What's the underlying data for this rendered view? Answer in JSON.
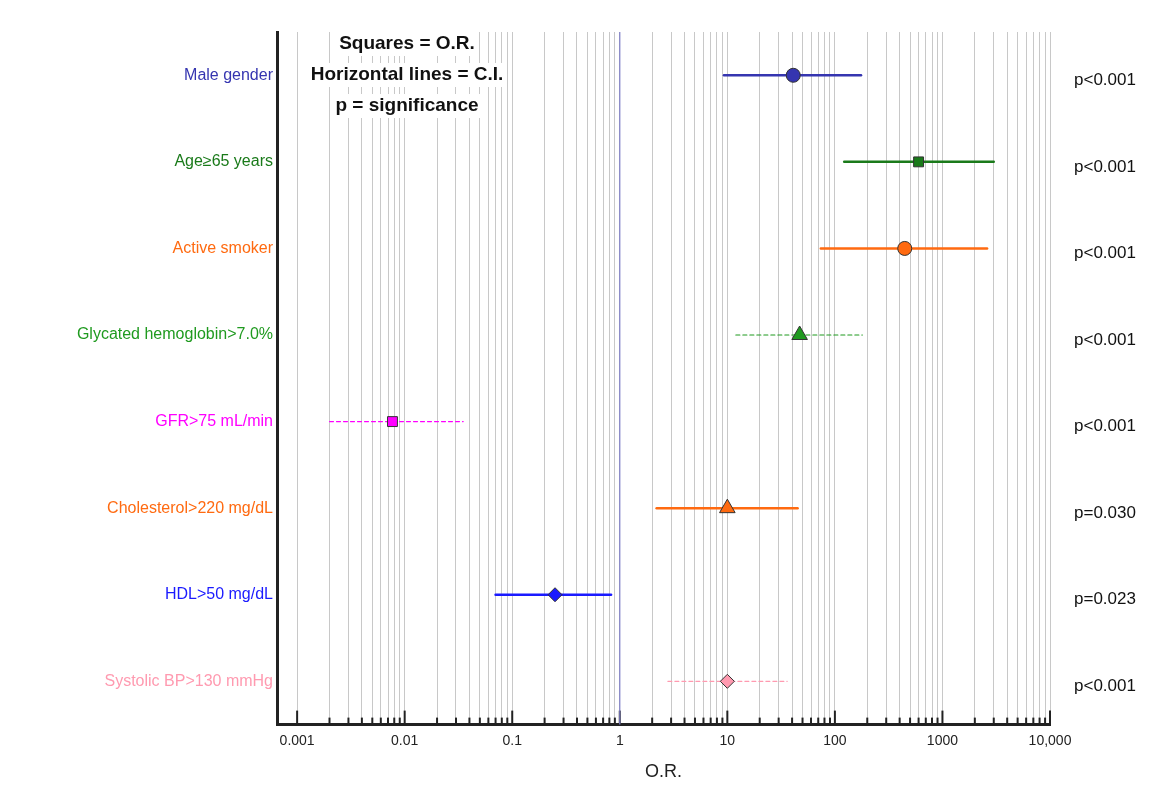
{
  "chart_data": {
    "type": "scatter",
    "orientation": "horizontal",
    "log": "x",
    "grid": "x",
    "xlabel": "O.R.",
    "categories": [
      "Male gender",
      "Age≥65 years",
      "Active smoker",
      "Glycated hemoglobin>7.0%",
      "GFR>75 mL/min",
      "Cholesterol>220 mg/dL",
      "HDL>50 mg/dL",
      "Systolic BP>130 mmHg"
    ],
    "xlim": [
      0.00065,
      10000
    ],
    "xticks": [
      0.001,
      {
        "value": 0.002,
        "label": null
      },
      {
        "value": 0.003,
        "label": null
      },
      {
        "value": 0.004,
        "label": null
      },
      {
        "value": 0.005,
        "label": null
      },
      {
        "value": 0.006,
        "label": null
      },
      {
        "value": 0.007,
        "label": null
      },
      {
        "value": 0.008,
        "label": null
      },
      {
        "value": 0.009,
        "label": null
      },
      0.01,
      {
        "value": 0.02,
        "label": null
      },
      {
        "value": 0.03,
        "label": null
      },
      {
        "value": 0.04,
        "label": null
      },
      {
        "value": 0.05,
        "label": null
      },
      {
        "value": 0.06,
        "label": null
      },
      {
        "value": 0.07,
        "label": null
      },
      {
        "value": 0.08,
        "label": null
      },
      {
        "value": 0.09,
        "label": null
      },
      0.1,
      {
        "value": 0.2,
        "label": null
      },
      {
        "value": 0.3,
        "label": null
      },
      {
        "value": 0.4,
        "label": null
      },
      {
        "value": 0.5,
        "label": null
      },
      {
        "value": 0.6,
        "label": null
      },
      {
        "value": 0.7,
        "label": null
      },
      {
        "value": 0.8,
        "label": null
      },
      {
        "value": 0.9,
        "label": null
      },
      1,
      {
        "value": 2,
        "label": null
      },
      {
        "value": 3,
        "label": null
      },
      {
        "value": 4,
        "label": null
      },
      {
        "value": 5,
        "label": null
      },
      {
        "value": 6,
        "label": null
      },
      {
        "value": 7,
        "label": null
      },
      {
        "value": 8,
        "label": null
      },
      {
        "value": 9,
        "label": null
      },
      10,
      {
        "value": 20,
        "label": null
      },
      {
        "value": 30,
        "label": null
      },
      {
        "value": 40,
        "label": null
      },
      {
        "value": 50,
        "label": null
      },
      {
        "value": 60,
        "label": null
      },
      {
        "value": 70,
        "label": null
      },
      {
        "value": 80,
        "label": null
      },
      {
        "value": 90,
        "label": null
      },
      100,
      {
        "value": 200,
        "label": null
      },
      {
        "value": 300,
        "label": null
      },
      {
        "value": 400,
        "label": null
      },
      {
        "value": 500,
        "label": null
      },
      {
        "value": 600,
        "label": null
      },
      {
        "value": 700,
        "label": null
      },
      {
        "value": 800,
        "label": null
      },
      {
        "value": 900,
        "label": null
      },
      1000,
      {
        "value": 2000,
        "label": null
      },
      {
        "value": 3000,
        "label": null
      },
      {
        "value": 4000,
        "label": null
      },
      {
        "value": 5000,
        "label": null
      },
      {
        "value": 6000,
        "label": null
      },
      {
        "value": 7000,
        "label": null
      },
      {
        "value": 8000,
        "label": null
      },
      {
        "value": 9000,
        "label": null
      },
      {
        "value": 10000,
        "label": "10,000"
      }
    ],
    "ref_lines": [
      {
        "axis": "x",
        "value": 1,
        "color": "#8080c8"
      }
    ],
    "series": [
      {
        "color": "#3535b0",
        "marker": "circle",
        "line_style": "solid",
        "values": [
          41,
          null,
          null,
          null,
          null,
          null,
          null,
          null
        ],
        "errors": [
          [
            9.3,
            175
          ],
          null,
          null,
          null,
          null,
          null,
          null,
          null
        ]
      },
      {
        "color": "#1a7a1a",
        "marker": "square",
        "line_style": "solid",
        "values": [
          null,
          600,
          null,
          null,
          null,
          null,
          null,
          null
        ],
        "errors": [
          null,
          [
            122,
            3000
          ],
          null,
          null,
          null,
          null,
          null,
          null
        ]
      },
      {
        "color": "#ff6a10",
        "marker": "circle",
        "line_style": "solid",
        "values": [
          null,
          null,
          446,
          null,
          null,
          null,
          null,
          null
        ],
        "errors": [
          null,
          null,
          [
            74,
            2600
          ],
          null,
          null,
          null,
          null,
          null
        ]
      },
      {
        "color": "#1f9a1f",
        "marker": "triangle",
        "line_style": "dashed",
        "values": [
          null,
          null,
          null,
          47,
          null,
          null,
          null,
          null
        ],
        "errors": [
          null,
          null,
          null,
          [
            12,
            180
          ],
          null,
          null,
          null,
          null
        ]
      },
      {
        "color": "#ff00ff",
        "marker": "square",
        "line_style": "dashed",
        "values": [
          null,
          null,
          null,
          null,
          0.0077,
          null,
          null,
          null
        ],
        "errors": [
          null,
          null,
          null,
          null,
          [
            0.002,
            0.035
          ],
          null,
          null,
          null
        ]
      },
      {
        "color": "#ff6a10",
        "marker": "triangle",
        "line_style": "solid",
        "values": [
          null,
          null,
          null,
          null,
          null,
          10,
          null,
          null
        ],
        "errors": [
          null,
          null,
          null,
          null,
          null,
          [
            2.2,
            45
          ],
          null,
          null
        ]
      },
      {
        "color": "#1a1aff",
        "marker": "diamond",
        "line_style": "solid",
        "values": [
          null,
          null,
          null,
          null,
          null,
          null,
          0.25,
          null
        ],
        "errors": [
          null,
          null,
          null,
          null,
          null,
          null,
          [
            0.07,
            0.83
          ],
          null
        ]
      },
      {
        "color": "#ff9ab0",
        "marker": "diamond",
        "line_style": "dashed",
        "values": [
          null,
          null,
          null,
          null,
          null,
          null,
          null,
          10
        ],
        "errors": [
          null,
          null,
          null,
          null,
          null,
          null,
          null,
          [
            2.8,
            36
          ]
        ]
      }
    ],
    "annotations": [
      "Squares = O.R.",
      "Horizontal lines = C.I.",
      "p = significance",
      "p<0.001",
      "p<0.001",
      "p<0.001",
      "p<0.001",
      "p<0.001",
      "p=0.030",
      "p=0.023",
      "p<0.001"
    ]
  }
}
